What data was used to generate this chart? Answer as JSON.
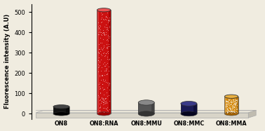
{
  "categories": [
    "ON8",
    "ON8:RNA",
    "ON8:MMU",
    "ON8:MMC",
    "ON8:MMA"
  ],
  "values": [
    35,
    510,
    55,
    50,
    85
  ],
  "bar_colors": [
    "#111111",
    "#cc1111",
    "#555555",
    "#1a1a55",
    "#d4880a"
  ],
  "bar_colors_light": [
    "#444444",
    "#ee5555",
    "#888888",
    "#3a3a88",
    "#e8b040"
  ],
  "bar_colors_dark": [
    "#000000",
    "#990000",
    "#333333",
    "#050520",
    "#a06000"
  ],
  "ylabel": "Fluorescence intensity (A.U)",
  "ylim": [
    0,
    540
  ],
  "yticks": [
    0,
    100,
    200,
    300,
    400,
    500
  ],
  "background_color": "#f0ece0",
  "platform_color_top": "#e0ddd0",
  "platform_color_front": "#c8c5b8",
  "platform_color_side": "#b8b5a8"
}
